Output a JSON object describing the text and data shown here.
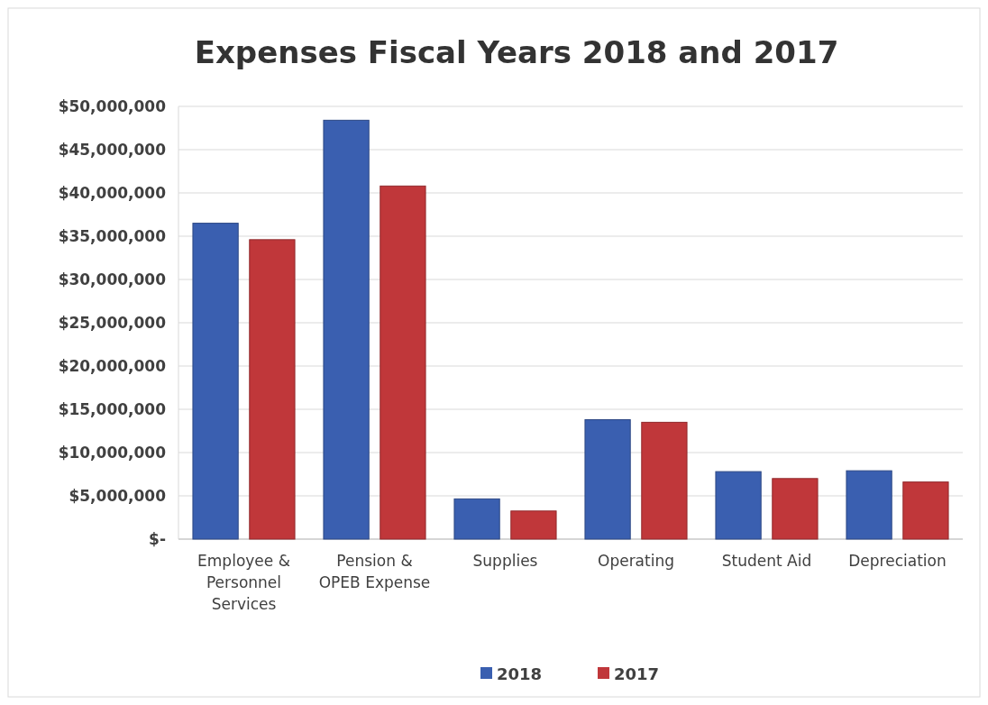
{
  "chart_data": {
    "type": "bar",
    "title": "Expenses Fiscal Years 2018 and 2017",
    "categories": [
      "Employee & Personnel Services",
      "Pension & OPEB Expense",
      "Supplies",
      "Operating",
      "Student Aid",
      "Depreciation"
    ],
    "series": [
      {
        "name": "2018",
        "color": "#3a5fb0",
        "values": [
          36500000,
          48400000,
          4650000,
          13800000,
          7800000,
          7900000
        ]
      },
      {
        "name": "2017",
        "color": "#c0373a",
        "values": [
          34600000,
          40800000,
          3250000,
          13500000,
          7000000,
          6600000
        ]
      }
    ],
    "ylim": [
      0,
      50000000
    ],
    "yticks": [
      {
        "value": 0,
        "label": "$-"
      },
      {
        "value": 5000000,
        "label": "$5,000,000"
      },
      {
        "value": 10000000,
        "label": "$10,000,000"
      },
      {
        "value": 15000000,
        "label": "$15,000,000"
      },
      {
        "value": 20000000,
        "label": "$20,000,000"
      },
      {
        "value": 25000000,
        "label": "$25,000,000"
      },
      {
        "value": 30000000,
        "label": "$30,000,000"
      },
      {
        "value": 35000000,
        "label": "$35,000,000"
      },
      {
        "value": 40000000,
        "label": "$40,000,000"
      },
      {
        "value": 45000000,
        "label": "$45,000,000"
      },
      {
        "value": 50000000,
        "label": "$50,000,000"
      }
    ],
    "grid": "y",
    "legend": "bottom"
  }
}
